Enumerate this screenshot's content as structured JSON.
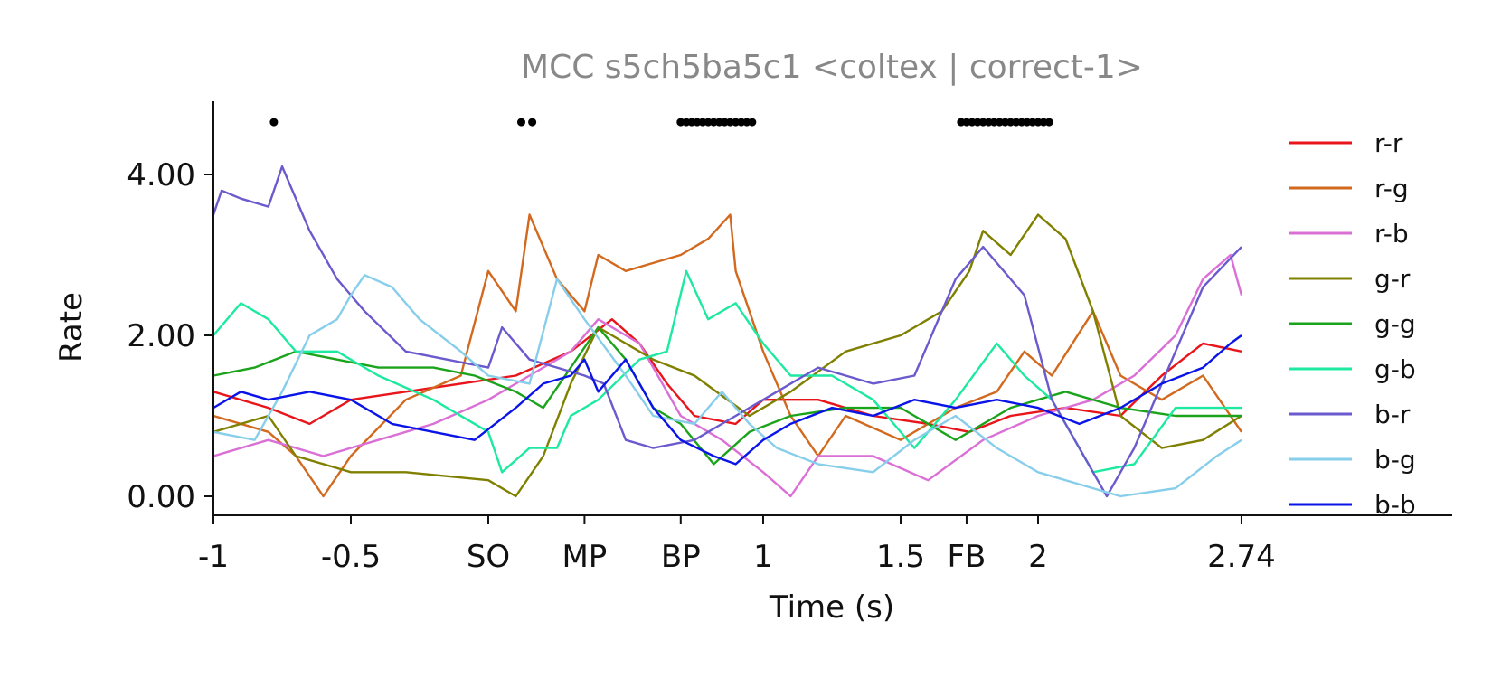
{
  "chart_data": {
    "type": "line",
    "title": "MCC s5ch5ba5c1 <coltex | correct-1>",
    "xlabel": "Time (s)",
    "ylabel": "Rate",
    "xlim": [
      -1,
      3.5
    ],
    "ylim": [
      -0.2,
      4.9
    ],
    "x_ticks": [
      {
        "value": -1,
        "label": "-1"
      },
      {
        "value": -0.5,
        "label": "-0.5"
      },
      {
        "value": 0,
        "label": "SO"
      },
      {
        "value": 0.35,
        "label": "MP"
      },
      {
        "value": 0.7,
        "label": "BP"
      },
      {
        "value": 1,
        "label": "1"
      },
      {
        "value": 1.5,
        "label": "1.5"
      },
      {
        "value": 1.74,
        "label": "FB"
      },
      {
        "value": 2,
        "label": "2"
      },
      {
        "value": 2.74,
        "label": "2.74"
      }
    ],
    "y_ticks": [
      {
        "value": 0,
        "label": "0.00"
      },
      {
        "value": 2,
        "label": "2.00"
      },
      {
        "value": 4,
        "label": "4.00"
      }
    ],
    "legend_position": "right",
    "grid": false,
    "significance_marker_y": 4.65,
    "significance_x": [
      -0.78,
      0.12,
      0.16,
      0.7,
      0.72,
      0.74,
      0.76,
      0.78,
      0.8,
      0.82,
      0.84,
      0.86,
      0.88,
      0.9,
      0.92,
      0.94,
      0.96,
      1.72,
      1.74,
      1.76,
      1.78,
      1.8,
      1.82,
      1.84,
      1.86,
      1.88,
      1.9,
      1.92,
      1.94,
      1.96,
      1.98,
      2.0,
      2.02,
      2.04
    ],
    "series": [
      {
        "name": "r-r",
        "color": "#e8151b",
        "points": [
          [
            -1,
            1.3
          ],
          [
            -0.8,
            1.1
          ],
          [
            -0.65,
            0.9
          ],
          [
            -0.5,
            1.2
          ],
          [
            -0.3,
            1.3
          ],
          [
            -0.1,
            1.4
          ],
          [
            0.1,
            1.5
          ],
          [
            0.3,
            1.8
          ],
          [
            0.45,
            2.2
          ],
          [
            0.55,
            1.9
          ],
          [
            0.65,
            1.4
          ],
          [
            0.75,
            1.0
          ],
          [
            0.9,
            0.9
          ],
          [
            1.0,
            1.2
          ],
          [
            1.2,
            1.2
          ],
          [
            1.4,
            1.0
          ],
          [
            1.6,
            0.9
          ],
          [
            1.75,
            0.8
          ],
          [
            1.9,
            1.0
          ],
          [
            2.1,
            1.1
          ],
          [
            2.3,
            1.0
          ],
          [
            2.45,
            1.5
          ],
          [
            2.6,
            1.9
          ],
          [
            2.74,
            1.8
          ]
        ]
      },
      {
        "name": "r-g",
        "color": "#d2691e",
        "points": [
          [
            -1,
            1.0
          ],
          [
            -0.8,
            0.8
          ],
          [
            -0.7,
            0.5
          ],
          [
            -0.6,
            0.0
          ],
          [
            -0.5,
            0.5
          ],
          [
            -0.3,
            1.2
          ],
          [
            -0.1,
            1.5
          ],
          [
            0.0,
            2.8
          ],
          [
            0.1,
            2.3
          ],
          [
            0.15,
            3.5
          ],
          [
            0.25,
            2.7
          ],
          [
            0.35,
            2.3
          ],
          [
            0.4,
            3.0
          ],
          [
            0.5,
            2.8
          ],
          [
            0.6,
            2.9
          ],
          [
            0.7,
            3.0
          ],
          [
            0.8,
            3.2
          ],
          [
            0.88,
            3.5
          ],
          [
            0.9,
            2.8
          ],
          [
            1.0,
            1.8
          ],
          [
            1.1,
            1.0
          ],
          [
            1.2,
            0.5
          ],
          [
            1.3,
            1.0
          ],
          [
            1.5,
            0.7
          ],
          [
            1.7,
            1.1
          ],
          [
            1.85,
            1.3
          ],
          [
            1.95,
            1.8
          ],
          [
            2.05,
            1.5
          ],
          [
            2.2,
            2.3
          ],
          [
            2.3,
            1.5
          ],
          [
            2.45,
            1.2
          ],
          [
            2.6,
            1.5
          ],
          [
            2.74,
            0.8
          ]
        ]
      },
      {
        "name": "r-b",
        "color": "#da70d6",
        "points": [
          [
            -1,
            0.5
          ],
          [
            -0.8,
            0.7
          ],
          [
            -0.6,
            0.5
          ],
          [
            -0.4,
            0.7
          ],
          [
            -0.2,
            0.9
          ],
          [
            0.0,
            1.2
          ],
          [
            0.15,
            1.5
          ],
          [
            0.3,
            1.8
          ],
          [
            0.4,
            2.2
          ],
          [
            0.55,
            1.9
          ],
          [
            0.7,
            1.0
          ],
          [
            0.85,
            0.7
          ],
          [
            1.0,
            0.3
          ],
          [
            1.1,
            0.0
          ],
          [
            1.2,
            0.5
          ],
          [
            1.4,
            0.5
          ],
          [
            1.6,
            0.2
          ],
          [
            1.8,
            0.7
          ],
          [
            2.0,
            1.0
          ],
          [
            2.2,
            1.2
          ],
          [
            2.35,
            1.5
          ],
          [
            2.5,
            2.0
          ],
          [
            2.6,
            2.7
          ],
          [
            2.7,
            3.0
          ],
          [
            2.74,
            2.5
          ]
        ]
      },
      {
        "name": "g-r",
        "color": "#808000",
        "points": [
          [
            -1,
            0.8
          ],
          [
            -0.8,
            1.0
          ],
          [
            -0.7,
            0.5
          ],
          [
            -0.5,
            0.3
          ],
          [
            -0.3,
            0.3
          ],
          [
            0.0,
            0.2
          ],
          [
            0.1,
            0.0
          ],
          [
            0.2,
            0.5
          ],
          [
            0.3,
            1.4
          ],
          [
            0.4,
            2.1
          ],
          [
            0.5,
            1.9
          ],
          [
            0.6,
            1.7
          ],
          [
            0.75,
            1.5
          ],
          [
            0.95,
            1.0
          ],
          [
            1.1,
            1.3
          ],
          [
            1.3,
            1.8
          ],
          [
            1.5,
            2.0
          ],
          [
            1.65,
            2.3
          ],
          [
            1.75,
            2.8
          ],
          [
            1.8,
            3.3
          ],
          [
            1.9,
            3.0
          ],
          [
            2.0,
            3.5
          ],
          [
            2.1,
            3.2
          ],
          [
            2.2,
            2.3
          ],
          [
            2.3,
            1.0
          ],
          [
            2.45,
            0.6
          ],
          [
            2.6,
            0.7
          ],
          [
            2.74,
            1.0
          ]
        ]
      },
      {
        "name": "g-g",
        "color": "#1ca31c",
        "points": [
          [
            -1,
            1.5
          ],
          [
            -0.85,
            1.6
          ],
          [
            -0.7,
            1.8
          ],
          [
            -0.55,
            1.7
          ],
          [
            -0.4,
            1.6
          ],
          [
            -0.2,
            1.6
          ],
          [
            -0.05,
            1.5
          ],
          [
            0.1,
            1.3
          ],
          [
            0.2,
            1.1
          ],
          [
            0.3,
            1.6
          ],
          [
            0.4,
            2.1
          ],
          [
            0.5,
            1.7
          ],
          [
            0.6,
            1.1
          ],
          [
            0.7,
            0.9
          ],
          [
            0.82,
            0.4
          ],
          [
            0.95,
            0.8
          ],
          [
            1.1,
            1.0
          ],
          [
            1.3,
            1.1
          ],
          [
            1.5,
            1.1
          ],
          [
            1.7,
            0.7
          ],
          [
            1.9,
            1.1
          ],
          [
            2.1,
            1.3
          ],
          [
            2.3,
            1.1
          ],
          [
            2.5,
            1.0
          ],
          [
            2.74,
            1.0
          ]
        ]
      },
      {
        "name": "g-b",
        "color": "#1de9a0",
        "points": [
          [
            -1,
            2.0
          ],
          [
            -0.9,
            2.4
          ],
          [
            -0.8,
            2.2
          ],
          [
            -0.7,
            1.8
          ],
          [
            -0.55,
            1.8
          ],
          [
            -0.4,
            1.5
          ],
          [
            -0.2,
            1.2
          ],
          [
            0.0,
            0.8
          ],
          [
            0.05,
            0.3
          ],
          [
            0.15,
            0.6
          ],
          [
            0.25,
            0.6
          ],
          [
            0.3,
            1.0
          ],
          [
            0.4,
            1.2
          ],
          [
            0.55,
            1.7
          ],
          [
            0.65,
            1.8
          ],
          [
            0.72,
            2.8
          ],
          [
            0.8,
            2.2
          ],
          [
            0.9,
            2.4
          ],
          [
            1.0,
            1.9
          ],
          [
            1.1,
            1.5
          ],
          [
            1.25,
            1.5
          ],
          [
            1.4,
            1.2
          ],
          [
            1.55,
            0.6
          ],
          [
            1.7,
            1.2
          ],
          [
            1.85,
            1.9
          ],
          [
            1.95,
            1.5
          ],
          [
            2.05,
            1.2
          ],
          [
            2.2,
            0.3
          ],
          [
            2.35,
            0.4
          ],
          [
            2.5,
            1.1
          ],
          [
            2.74,
            1.1
          ]
        ]
      },
      {
        "name": "b-r",
        "color": "#6a5acd",
        "points": [
          [
            -1,
            3.5
          ],
          [
            -0.97,
            3.8
          ],
          [
            -0.9,
            3.7
          ],
          [
            -0.8,
            3.6
          ],
          [
            -0.75,
            4.1
          ],
          [
            -0.65,
            3.3
          ],
          [
            -0.55,
            2.7
          ],
          [
            -0.45,
            2.3
          ],
          [
            -0.3,
            1.8
          ],
          [
            -0.15,
            1.7
          ],
          [
            0.0,
            1.6
          ],
          [
            0.05,
            2.1
          ],
          [
            0.15,
            1.7
          ],
          [
            0.25,
            1.6
          ],
          [
            0.35,
            1.5
          ],
          [
            0.42,
            1.4
          ],
          [
            0.5,
            0.7
          ],
          [
            0.6,
            0.6
          ],
          [
            0.75,
            0.7
          ],
          [
            0.9,
            1.0
          ],
          [
            1.05,
            1.3
          ],
          [
            1.2,
            1.6
          ],
          [
            1.4,
            1.4
          ],
          [
            1.55,
            1.5
          ],
          [
            1.7,
            2.7
          ],
          [
            1.8,
            3.1
          ],
          [
            1.95,
            2.5
          ],
          [
            2.05,
            1.2
          ],
          [
            2.15,
            0.6
          ],
          [
            2.25,
            0.0
          ],
          [
            2.35,
            0.6
          ],
          [
            2.45,
            1.4
          ],
          [
            2.6,
            2.6
          ],
          [
            2.74,
            3.1
          ]
        ]
      },
      {
        "name": "b-g",
        "color": "#87ceeb",
        "points": [
          [
            -1,
            0.8
          ],
          [
            -0.85,
            0.7
          ],
          [
            -0.75,
            1.3
          ],
          [
            -0.65,
            2.0
          ],
          [
            -0.55,
            2.2
          ],
          [
            -0.5,
            2.5
          ],
          [
            -0.45,
            2.75
          ],
          [
            -0.35,
            2.6
          ],
          [
            -0.25,
            2.2
          ],
          [
            -0.1,
            1.8
          ],
          [
            0.0,
            1.5
          ],
          [
            0.15,
            1.4
          ],
          [
            0.25,
            2.7
          ],
          [
            0.35,
            2.2
          ],
          [
            0.5,
            1.5
          ],
          [
            0.6,
            1.0
          ],
          [
            0.75,
            0.9
          ],
          [
            0.85,
            1.3
          ],
          [
            0.95,
            0.9
          ],
          [
            1.05,
            0.6
          ],
          [
            1.2,
            0.4
          ],
          [
            1.4,
            0.3
          ],
          [
            1.55,
            0.7
          ],
          [
            1.7,
            1.0
          ],
          [
            1.85,
            0.6
          ],
          [
            2.0,
            0.3
          ],
          [
            2.2,
            0.1
          ],
          [
            2.3,
            0.0
          ],
          [
            2.5,
            0.1
          ],
          [
            2.65,
            0.5
          ],
          [
            2.74,
            0.7
          ]
        ]
      },
      {
        "name": "b-b",
        "color": "#0a14e8",
        "points": [
          [
            -1,
            1.1
          ],
          [
            -0.9,
            1.3
          ],
          [
            -0.8,
            1.2
          ],
          [
            -0.65,
            1.3
          ],
          [
            -0.5,
            1.2
          ],
          [
            -0.35,
            0.9
          ],
          [
            -0.2,
            0.8
          ],
          [
            -0.05,
            0.7
          ],
          [
            0.1,
            1.1
          ],
          [
            0.2,
            1.4
          ],
          [
            0.3,
            1.5
          ],
          [
            0.35,
            1.7
          ],
          [
            0.4,
            1.3
          ],
          [
            0.5,
            1.7
          ],
          [
            0.6,
            1.1
          ],
          [
            0.7,
            0.7
          ],
          [
            0.82,
            0.5
          ],
          [
            0.9,
            0.4
          ],
          [
            1.0,
            0.7
          ],
          [
            1.1,
            0.9
          ],
          [
            1.25,
            1.1
          ],
          [
            1.4,
            1.0
          ],
          [
            1.55,
            1.2
          ],
          [
            1.7,
            1.1
          ],
          [
            1.85,
            1.2
          ],
          [
            2.0,
            1.1
          ],
          [
            2.15,
            0.9
          ],
          [
            2.3,
            1.1
          ],
          [
            2.45,
            1.4
          ],
          [
            2.6,
            1.6
          ],
          [
            2.7,
            1.9
          ],
          [
            2.74,
            2.0
          ]
        ]
      }
    ]
  }
}
